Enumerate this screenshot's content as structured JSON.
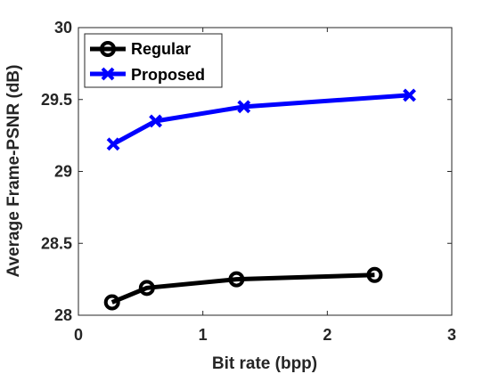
{
  "chart_data": {
    "type": "line",
    "xlabel": "Bit rate (bpp)",
    "ylabel": "Average Frame-PSNR (dB)",
    "xlim": [
      0,
      3
    ],
    "ylim": [
      28,
      30
    ],
    "xticks": [
      "0",
      "1",
      "2",
      "3"
    ],
    "yticks": [
      "28",
      "28.5",
      "29",
      "29.5",
      "30"
    ],
    "grid": false,
    "legend_position": "top-left",
    "series": [
      {
        "name": "Regular",
        "color": "#000000",
        "marker": "circle",
        "x": [
          0.27,
          0.55,
          1.27,
          2.38
        ],
        "y": [
          28.09,
          28.19,
          28.25,
          28.28
        ]
      },
      {
        "name": "Proposed",
        "color": "#0000ff",
        "marker": "x",
        "x": [
          0.28,
          0.62,
          1.33,
          2.66
        ],
        "y": [
          29.19,
          29.35,
          29.45,
          29.53
        ]
      }
    ]
  }
}
